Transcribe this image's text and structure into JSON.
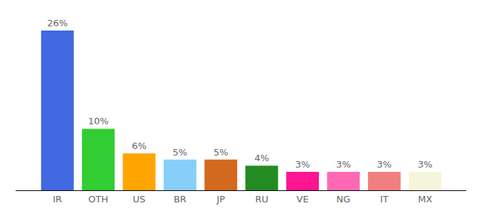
{
  "chart_data": {
    "type": "bar",
    "categories": [
      "IR",
      "OTH",
      "US",
      "BR",
      "JP",
      "RU",
      "VE",
      "NG",
      "IT",
      "MX"
    ],
    "values": [
      26,
      10,
      6,
      5,
      5,
      4,
      3,
      3,
      3,
      3
    ],
    "value_labels": [
      "26%",
      "10%",
      "6%",
      "5%",
      "5%",
      "4%",
      "3%",
      "3%",
      "3%",
      "3%"
    ],
    "colors": [
      "#4169e1",
      "#32cd32",
      "#ffa500",
      "#87cefa",
      "#d2691e",
      "#228b22",
      "#ff1493",
      "#ff69b4",
      "#f08080",
      "#f5f5dc"
    ],
    "ylim": [
      0,
      26
    ],
    "grid": false,
    "data_labels": true,
    "tick_labels": "x"
  }
}
